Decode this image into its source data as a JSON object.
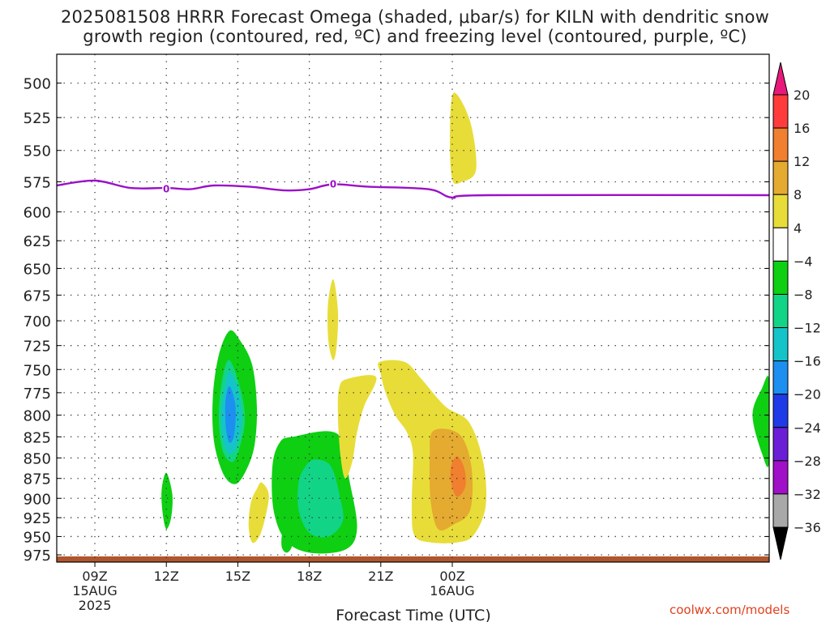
{
  "titles": {
    "line1": "2025081508 HRRR Forecast Omega (shaded, μbar/s) for KILN with dendritic snow",
    "line2": "growth region (contoured, red, ºC) and freezing level (contoured, purple, ºC)"
  },
  "credit": "coolwx.com/models",
  "chart_data": {
    "type": "contour",
    "title": "2025081508 HRRR Forecast Omega (shaded, μbar/s) for KILN with dendritic snow growth region (contoured, red, ºC) and freezing level (contoured, purple, ºC)",
    "xlabel": "Forecast Time (UTC)",
    "ylabel": "",
    "x_unit": "hours since 2025-08-15 09Z",
    "xlim": [
      -1.6,
      28.3
    ],
    "ylim": [
      985,
      480
    ],
    "y_scale": "log-pressure",
    "grid": true,
    "x_ticks": [
      {
        "h": 0,
        "label": "09Z",
        "sub": [
          "15AUG",
          "2025"
        ]
      },
      {
        "h": 3,
        "label": "12Z",
        "sub": []
      },
      {
        "h": 6,
        "label": "15Z",
        "sub": []
      },
      {
        "h": 9,
        "label": "18Z",
        "sub": []
      },
      {
        "h": 12,
        "label": "21Z",
        "sub": []
      },
      {
        "h": 15,
        "label": "00Z",
        "sub": [
          "16AUG"
        ]
      }
    ],
    "y_ticks": [
      500,
      525,
      550,
      575,
      600,
      625,
      650,
      675,
      700,
      725,
      750,
      775,
      800,
      825,
      850,
      875,
      900,
      925,
      950,
      975
    ],
    "colorbar": {
      "labels": [
        "20",
        "16",
        "12",
        "8",
        "4",
        "−4",
        "−8",
        "−12",
        "−16",
        "−20",
        "−24",
        "−28",
        "−32",
        "−36"
      ],
      "bands": [
        {
          "from": 16,
          "to": 20,
          "color": "#ff3b3b"
        },
        {
          "from": 12,
          "to": 16,
          "color": "#f07f2f"
        },
        {
          "from": 8,
          "to": 12,
          "color": "#e5aa30"
        },
        {
          "from": 4,
          "to": 8,
          "color": "#e8dd38"
        },
        {
          "from": -4,
          "to": 4,
          "color": "#ffffff"
        },
        {
          "from": -8,
          "to": -4,
          "color": "#0ecf12"
        },
        {
          "from": -12,
          "to": -8,
          "color": "#12d487"
        },
        {
          "from": -16,
          "to": -12,
          "color": "#15c4c8"
        },
        {
          "from": -20,
          "to": -16,
          "color": "#1c8ff0"
        },
        {
          "from": -24,
          "to": -20,
          "color": "#1f3be8"
        },
        {
          "from": -28,
          "to": -24,
          "color": "#6a1fd6"
        },
        {
          "from": -32,
          "to": -28,
          "color": "#a010c8"
        },
        {
          "from": -36,
          "to": -32,
          "color": "#a8a8a8"
        }
      ],
      "top_arrow": "#e8197a",
      "bottom_arrow": "#000000"
    },
    "freezing_level": {
      "color": "#9b10c8",
      "value_label": "0",
      "label_positions": [
        {
          "h": 3.0,
          "p": 581
        },
        {
          "h": 10.0,
          "p": 577
        }
      ],
      "points": [
        [
          -1.6,
          578
        ],
        [
          0.0,
          574
        ],
        [
          1.5,
          580
        ],
        [
          3.0,
          580
        ],
        [
          4.0,
          581
        ],
        [
          5.0,
          578
        ],
        [
          6.5,
          579
        ],
        [
          8.0,
          582
        ],
        [
          9.0,
          581
        ],
        [
          10.0,
          577
        ],
        [
          11.5,
          579
        ],
        [
          14.0,
          581
        ],
        [
          15.0,
          588
        ],
        [
          16.5,
          586
        ],
        [
          28.3,
          586
        ]
      ]
    },
    "ground": {
      "color": "#b0562e",
      "p_top": 975
    },
    "omega_regions": [
      {
        "color": "#0ecf12",
        "points": [
          [
            5.65,
            710
          ],
          [
            6.1,
            720
          ],
          [
            6.6,
            745
          ],
          [
            6.8,
            790
          ],
          [
            6.7,
            835
          ],
          [
            6.35,
            865
          ],
          [
            5.9,
            882
          ],
          [
            5.4,
            870
          ],
          [
            5.0,
            830
          ],
          [
            4.95,
            780
          ],
          [
            5.2,
            735
          ]
        ]
      },
      {
        "color": "#12d487",
        "points": [
          [
            5.65,
            740
          ],
          [
            6.1,
            770
          ],
          [
            6.3,
            805
          ],
          [
            6.05,
            840
          ],
          [
            5.75,
            855
          ],
          [
            5.35,
            840
          ],
          [
            5.2,
            800
          ],
          [
            5.35,
            760
          ]
        ]
      },
      {
        "color": "#15c4c8",
        "points": [
          [
            5.65,
            752
          ],
          [
            6.05,
            775
          ],
          [
            6.15,
            810
          ],
          [
            5.95,
            835
          ],
          [
            5.65,
            845
          ],
          [
            5.4,
            830
          ],
          [
            5.3,
            800
          ],
          [
            5.45,
            770
          ]
        ]
      },
      {
        "color": "#1c8ff0",
        "points": [
          [
            5.65,
            768
          ],
          [
            5.9,
            790
          ],
          [
            5.85,
            822
          ],
          [
            5.65,
            832
          ],
          [
            5.5,
            815
          ],
          [
            5.48,
            785
          ]
        ]
      },
      {
        "color": "#0ecf12",
        "points": [
          [
            3.0,
            868
          ],
          [
            3.25,
            895
          ],
          [
            3.2,
            925
          ],
          [
            3.0,
            940
          ],
          [
            2.85,
            920
          ],
          [
            2.8,
            890
          ]
        ]
      },
      {
        "color": "#e8dd38",
        "points": [
          [
            7.0,
            880
          ],
          [
            7.3,
            895
          ],
          [
            7.15,
            925
          ],
          [
            6.9,
            950
          ],
          [
            6.6,
            958
          ],
          [
            6.45,
            935
          ],
          [
            6.55,
            905
          ],
          [
            6.8,
            888
          ]
        ]
      },
      {
        "color": "#0ecf12",
        "points": [
          [
            8.0,
            938
          ],
          [
            8.3,
            950
          ],
          [
            8.25,
            965
          ],
          [
            8.05,
            972
          ],
          [
            7.85,
            965
          ],
          [
            7.85,
            948
          ]
        ]
      },
      {
        "color": "#0ecf12",
        "points": [
          [
            8.3,
            825
          ],
          [
            10.2,
            822
          ],
          [
            10.7,
            880
          ],
          [
            11.0,
            940
          ],
          [
            10.5,
            968
          ],
          [
            9.0,
            972
          ],
          [
            8.0,
            955
          ],
          [
            7.5,
            915
          ],
          [
            7.45,
            860
          ],
          [
            7.75,
            832
          ]
        ]
      },
      {
        "color": "#12d487",
        "points": [
          [
            9.2,
            852
          ],
          [
            9.9,
            860
          ],
          [
            10.3,
            900
          ],
          [
            10.4,
            930
          ],
          [
            9.8,
            950
          ],
          [
            9.0,
            945
          ],
          [
            8.55,
            915
          ],
          [
            8.55,
            880
          ],
          [
            8.8,
            862
          ]
        ]
      },
      {
        "color": "#e8dd38",
        "points": [
          [
            10.0,
            660
          ],
          [
            10.2,
            690
          ],
          [
            10.15,
            725
          ],
          [
            10.0,
            740
          ],
          [
            9.8,
            720
          ],
          [
            9.78,
            685
          ]
        ]
      },
      {
        "color": "#e8dd38",
        "points": [
          [
            10.6,
            760
          ],
          [
            11.8,
            758
          ],
          [
            11.3,
            790
          ],
          [
            11.0,
            820
          ],
          [
            10.8,
            855
          ],
          [
            10.5,
            875
          ],
          [
            10.3,
            845
          ],
          [
            10.2,
            800
          ],
          [
            10.25,
            770
          ]
        ]
      },
      {
        "color": "#e8dd38",
        "points": [
          [
            11.95,
            742
          ],
          [
            13.0,
            742
          ],
          [
            13.7,
            760
          ],
          [
            14.7,
            790
          ],
          [
            15.7,
            808
          ],
          [
            16.3,
            855
          ],
          [
            16.4,
            910
          ],
          [
            15.9,
            948
          ],
          [
            15.2,
            958
          ],
          [
            14.1,
            958
          ],
          [
            13.4,
            948
          ],
          [
            13.3,
            905
          ],
          [
            13.35,
            845
          ],
          [
            13.1,
            820
          ],
          [
            12.6,
            800
          ],
          [
            12.2,
            775
          ],
          [
            12.0,
            755
          ]
        ]
      },
      {
        "color": "#e5aa30",
        "points": [
          [
            14.2,
            818
          ],
          [
            15.3,
            822
          ],
          [
            15.8,
            860
          ],
          [
            15.75,
            915
          ],
          [
            15.0,
            935
          ],
          [
            14.4,
            940
          ],
          [
            14.1,
            905
          ],
          [
            14.05,
            850
          ]
        ]
      },
      {
        "color": "#f07f2f",
        "points": [
          [
            15.2,
            848
          ],
          [
            15.5,
            862
          ],
          [
            15.55,
            885
          ],
          [
            15.2,
            898
          ],
          [
            14.95,
            880
          ],
          [
            14.95,
            860
          ]
        ]
      },
      {
        "color": "#e8dd38",
        "points": [
          [
            15.05,
            507
          ],
          [
            15.75,
            528
          ],
          [
            16.0,
            565
          ],
          [
            15.4,
            575
          ],
          [
            15.0,
            573
          ],
          [
            14.9,
            540
          ]
        ]
      },
      {
        "color": "#0ecf12",
        "points": [
          [
            28.3,
            762
          ],
          [
            28.3,
            855
          ],
          [
            28.0,
            845
          ],
          [
            27.6,
            800
          ],
          [
            28.0,
            770
          ]
        ]
      }
    ]
  }
}
